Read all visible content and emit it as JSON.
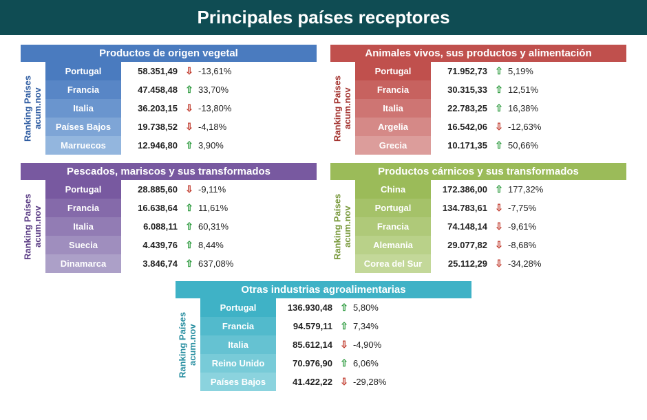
{
  "title": "Principales países receptores",
  "title_bg": "#0f4c53",
  "side_label_top": "Ranking Países",
  "side_label_bottom": "acum.nov",
  "up_color": "#2e9b3f",
  "down_color": "#c0392b",
  "sections": [
    {
      "header": "Productos de origen vegetal",
      "header_bg": "#4a7bbf",
      "side_color": "#2c5aa0",
      "country_bg_colors": [
        "#4a7bbf",
        "#5886c6",
        "#6a95ce",
        "#7ea5d6",
        "#93b6de"
      ],
      "rows": [
        {
          "country": "Portugal",
          "value": "58.351,49",
          "dir": "down",
          "pct": "-13,61%"
        },
        {
          "country": "Francia",
          "value": "47.458,48",
          "dir": "up",
          "pct": "33,70%"
        },
        {
          "country": "Italia",
          "value": "36.203,15",
          "dir": "down",
          "pct": "-13,80%"
        },
        {
          "country": "Países Bajos",
          "value": "19.738,52",
          "dir": "down",
          "pct": "-4,18%"
        },
        {
          "country": "Marruecos",
          "value": "12.946,80",
          "dir": "up",
          "pct": "3,90%"
        }
      ]
    },
    {
      "header": "Animales vivos, sus productos y alimentación",
      "header_bg": "#c0504d",
      "side_color": "#a3332f",
      "country_bg_colors": [
        "#c0504d",
        "#c7625f",
        "#ce7573",
        "#d58987",
        "#dc9d9b"
      ],
      "rows": [
        {
          "country": "Portugal",
          "value": "71.952,73",
          "dir": "up",
          "pct": "5,19%"
        },
        {
          "country": "Francia",
          "value": "30.315,33",
          "dir": "up",
          "pct": "12,51%"
        },
        {
          "country": "Italia",
          "value": "22.783,25",
          "dir": "up",
          "pct": "16,38%"
        },
        {
          "country": "Argelia",
          "value": "16.542,06",
          "dir": "down",
          "pct": "-12,63%"
        },
        {
          "country": "Grecia",
          "value": "10.171,35",
          "dir": "up",
          "pct": "50,66%"
        }
      ]
    },
    {
      "header": "Pescados, mariscos y sus transformados",
      "header_bg": "#7859a0",
      "side_color": "#5b3d85",
      "country_bg_colors": [
        "#7859a0",
        "#856aaa",
        "#927cb4",
        "#9f8ebe",
        "#aca0c8"
      ],
      "rows": [
        {
          "country": "Portugal",
          "value": "28.885,60",
          "dir": "down",
          "pct": "-9,11%"
        },
        {
          "country": "Francia",
          "value": "16.638,64",
          "dir": "up",
          "pct": "11,61%"
        },
        {
          "country": "Italia",
          "value": "6.088,11",
          "dir": "up",
          "pct": "60,31%"
        },
        {
          "country": "Suecia",
          "value": "4.439,76",
          "dir": "up",
          "pct": "8,44%"
        },
        {
          "country": "Dinamarca",
          "value": "3.846,74",
          "dir": "up",
          "pct": "637,08%"
        }
      ]
    },
    {
      "header": "Productos cárnicos y sus transformados",
      "header_bg": "#9bbb59",
      "side_color": "#7a9a3e",
      "country_bg_colors": [
        "#9bbb59",
        "#a5c269",
        "#afc979",
        "#b9d189",
        "#c3d899"
      ],
      "rows": [
        {
          "country": "China",
          "value": "172.386,00",
          "dir": "up",
          "pct": "177,32%"
        },
        {
          "country": "Portugal",
          "value": "134.783,61",
          "dir": "down",
          "pct": "-7,75%"
        },
        {
          "country": "Francia",
          "value": "74.148,14",
          "dir": "down",
          "pct": "-9,61%"
        },
        {
          "country": "Alemania",
          "value": "29.077,82",
          "dir": "down",
          "pct": "-8,68%"
        },
        {
          "country": "Corea del Sur",
          "value": "25.112,29",
          "dir": "down",
          "pct": "-34,28%"
        }
      ]
    },
    {
      "header": "Otras industrias agroalimentarias",
      "header_bg": "#3fb2c6",
      "side_color": "#2a8fa1",
      "country_bg_colors": [
        "#3fb2c6",
        "#52bacc",
        "#65c2d2",
        "#78cbd8",
        "#8bd3de"
      ],
      "rows": [
        {
          "country": "Portugal",
          "value": "136.930,48",
          "dir": "up",
          "pct": "5,80%"
        },
        {
          "country": "Francia",
          "value": "94.579,11",
          "dir": "up",
          "pct": "7,34%"
        },
        {
          "country": "Italia",
          "value": "85.612,14",
          "dir": "down",
          "pct": "-4,90%"
        },
        {
          "country": "Reino Unido",
          "value": "70.976,90",
          "dir": "up",
          "pct": "6,06%"
        },
        {
          "country": "Países Bajos",
          "value": "41.422,22",
          "dir": "down",
          "pct": "-29,28%"
        }
      ]
    }
  ]
}
